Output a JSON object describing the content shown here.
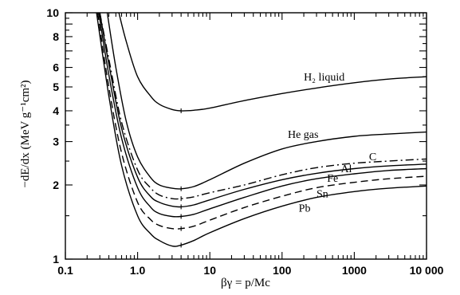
{
  "chart_data": {
    "type": "line",
    "title": "",
    "xlabel": "βγ = p/Mc",
    "ylabel": "−dE/dx (MeV g⁻¹cm²)",
    "xscale": "log",
    "yscale": "log",
    "xlim": [
      0.1,
      10000
    ],
    "ylim": [
      1,
      10
    ],
    "x_tick_labels": [
      {
        "value": 0.1,
        "label": "0.1"
      },
      {
        "value": 1,
        "label": "1.0"
      },
      {
        "value": 10,
        "label": "10"
      },
      {
        "value": 100,
        "label": "100"
      },
      {
        "value": 1000,
        "label": "1000"
      },
      {
        "value": 10000,
        "label": "10 000"
      }
    ],
    "y_tick_labels": [
      {
        "value": 1,
        "label": "1"
      },
      {
        "value": 2,
        "label": "2"
      },
      {
        "value": 3,
        "label": "3"
      },
      {
        "value": 4,
        "label": "4"
      },
      {
        "value": 5,
        "label": "5"
      },
      {
        "value": 6,
        "label": "6"
      },
      {
        "value": 8,
        "label": "8"
      },
      {
        "value": 10,
        "label": "10"
      }
    ],
    "grid": false,
    "series": [
      {
        "name": "H₂ liquid",
        "style": "solid",
        "points": [
          [
            0.55,
            10
          ],
          [
            0.7,
            7.6
          ],
          [
            1.0,
            5.5
          ],
          [
            1.5,
            4.6
          ],
          [
            2.0,
            4.25
          ],
          [
            3.0,
            4.05
          ],
          [
            4.0,
            4.0
          ],
          [
            6.0,
            4.02
          ],
          [
            10,
            4.1
          ],
          [
            30,
            4.4
          ],
          [
            100,
            4.7
          ],
          [
            300,
            4.95
          ],
          [
            1000,
            5.2
          ],
          [
            3000,
            5.38
          ],
          [
            10000,
            5.5
          ]
        ]
      },
      {
        "name": "He gas",
        "style": "solid",
        "points": [
          [
            0.38,
            10
          ],
          [
            0.5,
            6.0
          ],
          [
            0.7,
            3.6
          ],
          [
            1.0,
            2.6
          ],
          [
            1.5,
            2.15
          ],
          [
            2.0,
            2.0
          ],
          [
            3.0,
            1.94
          ],
          [
            4.0,
            1.93
          ],
          [
            6.0,
            1.97
          ],
          [
            10,
            2.1
          ],
          [
            30,
            2.45
          ],
          [
            100,
            2.8
          ],
          [
            300,
            3.0
          ],
          [
            1000,
            3.15
          ],
          [
            3000,
            3.22
          ],
          [
            10000,
            3.28
          ]
        ]
      },
      {
        "name": "C",
        "style": "dash-dot",
        "points": [
          [
            0.3,
            10
          ],
          [
            0.4,
            6.5
          ],
          [
            0.6,
            3.6
          ],
          [
            1.0,
            2.3
          ],
          [
            1.5,
            1.95
          ],
          [
            2.0,
            1.82
          ],
          [
            3.0,
            1.76
          ],
          [
            4.0,
            1.76
          ],
          [
            6.0,
            1.79
          ],
          [
            10,
            1.86
          ],
          [
            30,
            2.0
          ],
          [
            100,
            2.2
          ],
          [
            300,
            2.35
          ],
          [
            1000,
            2.45
          ],
          [
            3000,
            2.5
          ],
          [
            10000,
            2.55
          ]
        ]
      },
      {
        "name": "Al",
        "style": "solid",
        "points": [
          [
            0.3,
            10
          ],
          [
            0.4,
            6.2
          ],
          [
            0.6,
            3.4
          ],
          [
            1.0,
            2.15
          ],
          [
            1.5,
            1.8
          ],
          [
            2.0,
            1.7
          ],
          [
            3.0,
            1.64
          ],
          [
            4.0,
            1.63
          ],
          [
            6.0,
            1.66
          ],
          [
            10,
            1.74
          ],
          [
            30,
            1.92
          ],
          [
            100,
            2.1
          ],
          [
            300,
            2.23
          ],
          [
            1000,
            2.33
          ],
          [
            3000,
            2.39
          ],
          [
            10000,
            2.43
          ]
        ]
      },
      {
        "name": "Fe",
        "style": "solid",
        "points": [
          [
            0.29,
            10
          ],
          [
            0.4,
            5.6
          ],
          [
            0.6,
            3.1
          ],
          [
            1.0,
            1.95
          ],
          [
            1.5,
            1.63
          ],
          [
            2.0,
            1.53
          ],
          [
            3.0,
            1.49
          ],
          [
            4.0,
            1.49
          ],
          [
            6.0,
            1.52
          ],
          [
            10,
            1.6
          ],
          [
            30,
            1.78
          ],
          [
            100,
            1.98
          ],
          [
            300,
            2.12
          ],
          [
            1000,
            2.22
          ],
          [
            3000,
            2.29
          ],
          [
            10000,
            2.33
          ]
        ]
      },
      {
        "name": "Sn",
        "style": "dashed",
        "points": [
          [
            0.28,
            10
          ],
          [
            0.4,
            5.0
          ],
          [
            0.6,
            2.7
          ],
          [
            1.0,
            1.7
          ],
          [
            1.5,
            1.45
          ],
          [
            2.0,
            1.37
          ],
          [
            3.0,
            1.33
          ],
          [
            4.0,
            1.33
          ],
          [
            6.0,
            1.36
          ],
          [
            10,
            1.44
          ],
          [
            30,
            1.62
          ],
          [
            100,
            1.8
          ],
          [
            300,
            1.95
          ],
          [
            1000,
            2.05
          ],
          [
            3000,
            2.12
          ],
          [
            10000,
            2.17
          ]
        ]
      },
      {
        "name": "Pb",
        "style": "solid",
        "points": [
          [
            0.27,
            10
          ],
          [
            0.4,
            4.6
          ],
          [
            0.6,
            2.4
          ],
          [
            1.0,
            1.5
          ],
          [
            1.5,
            1.27
          ],
          [
            2.0,
            1.19
          ],
          [
            3.0,
            1.13
          ],
          [
            4.0,
            1.14
          ],
          [
            6.0,
            1.19
          ],
          [
            10,
            1.28
          ],
          [
            30,
            1.46
          ],
          [
            100,
            1.64
          ],
          [
            300,
            1.78
          ],
          [
            1000,
            1.88
          ],
          [
            3000,
            1.94
          ],
          [
            10000,
            1.98
          ]
        ]
      }
    ],
    "annotations": [
      {
        "text": "H₂ liquid",
        "series": "H₂ liquid",
        "at_x": 200,
        "at_y": 5.3
      },
      {
        "text": "He gas",
        "series": "He gas",
        "at_x": 120,
        "at_y": 3.1
      },
      {
        "text": "C",
        "series": "C",
        "at_x": 1600,
        "at_y": 2.52
      },
      {
        "text": "Al",
        "series": "Al",
        "at_x": 650,
        "at_y": 2.25
      },
      {
        "text": "Fe",
        "series": "Fe",
        "at_x": 420,
        "at_y": 2.06
      },
      {
        "text": "Sn",
        "series": "Sn",
        "at_x": 300,
        "at_y": 1.78
      },
      {
        "text": "Pb",
        "series": "Pb",
        "at_x": 170,
        "at_y": 1.56
      }
    ]
  }
}
